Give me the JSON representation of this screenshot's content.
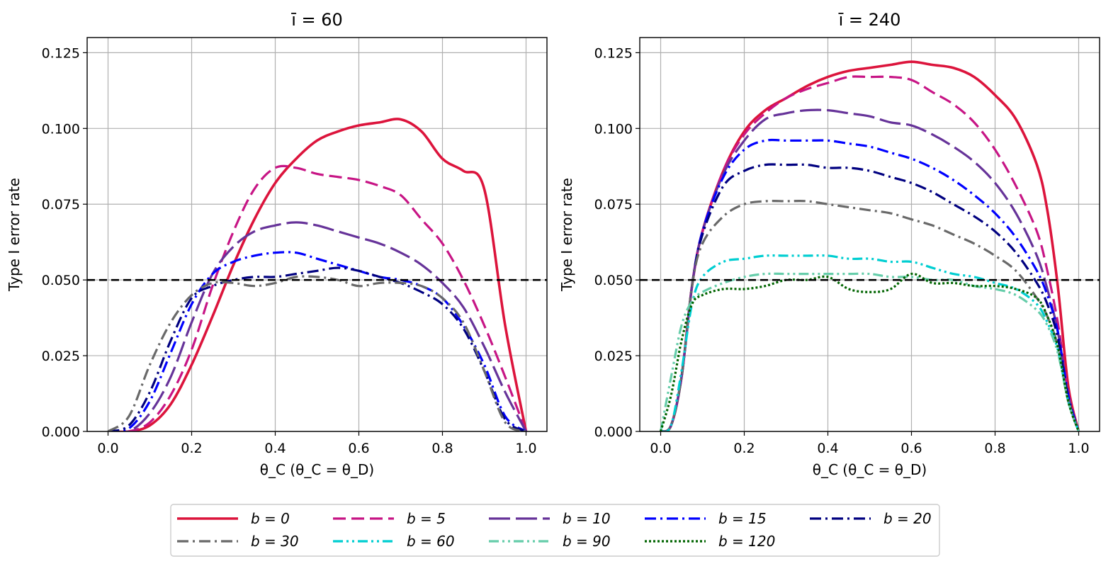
{
  "chart_data": {
    "panels": [
      {
        "type": "line",
        "title": "ī = 60",
        "xlabel": "θ_C   (θ_C = θ_D)",
        "ylabel": "Type I error rate",
        "xlim": [
          -0.05,
          1.05
        ],
        "ylim": [
          0,
          0.13
        ],
        "xticks": [
          "0.0",
          "0.2",
          "0.4",
          "0.6",
          "0.8",
          "1.0"
        ],
        "yticks": [
          "0.000",
          "0.025",
          "0.050",
          "0.075",
          "0.100",
          "0.125"
        ],
        "grid": true,
        "reference_line": 0.05,
        "x": [
          0,
          0.05,
          0.1,
          0.15,
          0.2,
          0.25,
          0.3,
          0.35,
          0.4,
          0.45,
          0.5,
          0.55,
          0.6,
          0.65,
          0.7,
          0.75,
          0.8,
          0.85,
          0.9,
          0.95,
          1.0
        ],
        "series": [
          {
            "name": "b = 0",
            "values": [
              0,
              0,
              0.002,
              0.009,
              0.022,
              0.038,
              0.055,
              0.07,
              0.082,
              0.09,
              0.096,
              0.099,
              0.101,
              0.102,
              0.103,
              0.099,
              0.09,
              0.086,
              0.08,
              0.035,
              0
            ]
          },
          {
            "name": "b = 5",
            "values": [
              0,
              0,
              0.003,
              0.012,
              0.027,
              0.048,
              0.066,
              0.08,
              0.087,
              0.087,
              0.085,
              0.084,
              0.083,
              0.081,
              0.078,
              0.07,
              0.062,
              0.05,
              0.035,
              0.018,
              0
            ]
          },
          {
            "name": "b = 10",
            "values": [
              0,
              0,
              0.006,
              0.018,
              0.036,
              0.052,
              0.061,
              0.066,
              0.068,
              0.069,
              0.068,
              0.066,
              0.064,
              0.062,
              0.059,
              0.055,
              0.049,
              0.041,
              0.028,
              0.013,
              0
            ]
          },
          {
            "name": "b = 15",
            "values": [
              0,
              0.001,
              0.01,
              0.026,
              0.042,
              0.052,
              0.056,
              0.058,
              0.059,
              0.059,
              0.057,
              0.055,
              0.053,
              0.051,
              0.05,
              0.048,
              0.044,
              0.035,
              0.022,
              0.005,
              0
            ]
          },
          {
            "name": "b = 20",
            "values": [
              0,
              0.002,
              0.013,
              0.03,
              0.044,
              0.048,
              0.05,
              0.051,
              0.051,
              0.052,
              0.053,
              0.054,
              0.053,
              0.051,
              0.049,
              0.046,
              0.042,
              0.034,
              0.02,
              0.004,
              0
            ]
          },
          {
            "name": "b = 30",
            "values": [
              0,
              0.005,
              0.022,
              0.036,
              0.045,
              0.049,
              0.049,
              0.048,
              0.049,
              0.051,
              0.051,
              0.05,
              0.048,
              0.049,
              0.049,
              0.048,
              0.044,
              0.036,
              0.02,
              0.003,
              0
            ]
          }
        ]
      },
      {
        "type": "line",
        "title": "ī = 240",
        "xlabel": "θ_C   (θ_C = θ_D)",
        "ylabel": "Type I error rate",
        "xlim": [
          -0.05,
          1.05
        ],
        "ylim": [
          0,
          0.13
        ],
        "xticks": [
          "0.0",
          "0.2",
          "0.4",
          "0.6",
          "0.8",
          "1.0"
        ],
        "yticks": [
          "0.000",
          "0.025",
          "0.050",
          "0.075",
          "0.100",
          "0.125"
        ],
        "grid": true,
        "reference_line": 0.05,
        "x": [
          0,
          0.025,
          0.05,
          0.075,
          0.1,
          0.15,
          0.2,
          0.25,
          0.3,
          0.35,
          0.4,
          0.45,
          0.5,
          0.55,
          0.6,
          0.65,
          0.7,
          0.75,
          0.8,
          0.85,
          0.9,
          0.925,
          0.95,
          0.975,
          1.0
        ],
        "series": [
          {
            "name": "b = 0",
            "values": [
              0,
              0.002,
              0.018,
              0.048,
              0.066,
              0.086,
              0.099,
              0.106,
              0.11,
              0.114,
              0.117,
              0.119,
              0.12,
              0.121,
              0.122,
              0.121,
              0.12,
              0.117,
              0.111,
              0.103,
              0.088,
              0.073,
              0.048,
              0.015,
              0
            ]
          },
          {
            "name": "b = 5",
            "values": [
              0,
              0.002,
              0.018,
              0.048,
              0.066,
              0.086,
              0.098,
              0.105,
              0.11,
              0.113,
              0.115,
              0.117,
              0.117,
              0.117,
              0.116,
              0.112,
              0.108,
              0.102,
              0.093,
              0.081,
              0.066,
              0.053,
              0.036,
              0.013,
              0
            ]
          },
          {
            "name": "b = 10",
            "values": [
              0,
              0.002,
              0.018,
              0.048,
              0.066,
              0.085,
              0.096,
              0.103,
              0.105,
              0.106,
              0.106,
              0.105,
              0.104,
              0.102,
              0.101,
              0.098,
              0.094,
              0.089,
              0.082,
              0.072,
              0.058,
              0.047,
              0.033,
              0.012,
              0
            ]
          },
          {
            "name": "b = 15",
            "values": [
              0,
              0.002,
              0.018,
              0.048,
              0.066,
              0.084,
              0.093,
              0.096,
              0.096,
              0.096,
              0.096,
              0.095,
              0.094,
              0.092,
              0.09,
              0.087,
              0.083,
              0.078,
              0.072,
              0.064,
              0.053,
              0.045,
              0.033,
              0.012,
              0
            ]
          },
          {
            "name": "b = 20",
            "values": [
              0,
              0.002,
              0.018,
              0.048,
              0.065,
              0.081,
              0.086,
              0.088,
              0.088,
              0.088,
              0.087,
              0.087,
              0.086,
              0.084,
              0.082,
              0.079,
              0.075,
              0.071,
              0.066,
              0.059,
              0.049,
              0.042,
              0.031,
              0.011,
              0
            ]
          },
          {
            "name": "b = 30",
            "values": [
              0,
              0.002,
              0.018,
              0.048,
              0.062,
              0.071,
              0.075,
              0.076,
              0.076,
              0.076,
              0.075,
              0.074,
              0.073,
              0.072,
              0.07,
              0.068,
              0.065,
              0.062,
              0.058,
              0.053,
              0.044,
              0.038,
              0.028,
              0.01,
              0
            ]
          },
          {
            "name": "b = 60",
            "values": [
              0,
              0.002,
              0.02,
              0.042,
              0.051,
              0.056,
              0.057,
              0.058,
              0.058,
              0.058,
              0.058,
              0.057,
              0.057,
              0.056,
              0.056,
              0.054,
              0.052,
              0.051,
              0.049,
              0.047,
              0.042,
              0.036,
              0.027,
              0.01,
              0
            ]
          },
          {
            "name": "b = 90",
            "values": [
              0,
              0.018,
              0.035,
              0.043,
              0.046,
              0.049,
              0.051,
              0.052,
              0.052,
              0.052,
              0.052,
              0.052,
              0.052,
              0.051,
              0.051,
              0.05,
              0.05,
              0.048,
              0.047,
              0.045,
              0.04,
              0.035,
              0.026,
              0.01,
              0
            ]
          },
          {
            "name": "b = 120",
            "values": [
              0,
              0.012,
              0.03,
              0.042,
              0.045,
              0.047,
              0.047,
              0.048,
              0.05,
              0.05,
              0.051,
              0.047,
              0.046,
              0.047,
              0.052,
              0.049,
              0.049,
              0.048,
              0.048,
              0.047,
              0.044,
              0.038,
              0.028,
              0.01,
              0
            ]
          }
        ]
      }
    ],
    "legend": {
      "placement": "bottom-center",
      "entries": [
        {
          "label": "b = 0",
          "color": "#dc143c",
          "dash": "solid"
        },
        {
          "label": "b = 5",
          "color": "#c71585",
          "dash": "dashed"
        },
        {
          "label": "b = 10",
          "color": "#663399",
          "dash": "longdash"
        },
        {
          "label": "b = 15",
          "color": "#0000ff",
          "dash": "dashdot"
        },
        {
          "label": "b = 20",
          "color": "#000080",
          "dash": "dashdot"
        },
        {
          "label": "b = 30",
          "color": "#696969",
          "dash": "dashdot"
        },
        {
          "label": "b = 60",
          "color": "#00ced1",
          "dash": "dashdotdot"
        },
        {
          "label": "b = 90",
          "color": "#66cdaa",
          "dash": "dashdotdot"
        },
        {
          "label": "b = 120",
          "color": "#006400",
          "dash": "dotted"
        }
      ]
    }
  }
}
